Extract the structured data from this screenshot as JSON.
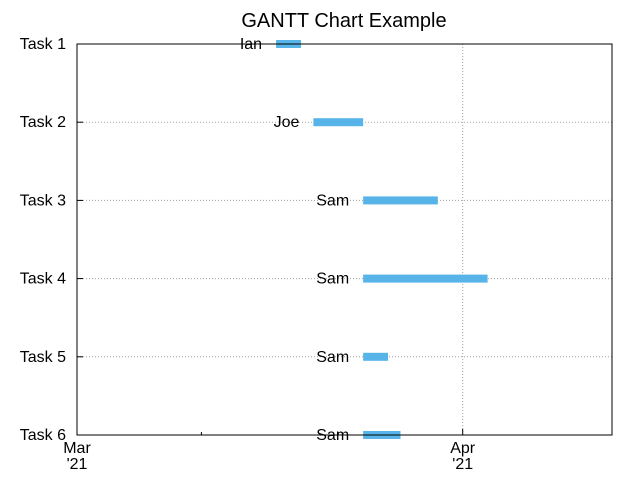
{
  "chart_data": {
    "type": "gantt",
    "title": "GANTT Chart Example",
    "xlabel": "",
    "ylabel": "",
    "x_axis": {
      "type": "date",
      "range": [
        "2021-03-01",
        "2021-04-13"
      ],
      "major_ticks": [
        {
          "date": "2021-03-01",
          "label_line1": "Mar",
          "label_line2": "'21"
        },
        {
          "date": "2021-04-01",
          "label_line1": "Apr",
          "label_line2": "'21"
        }
      ],
      "minor_ticks": [
        "2021-03-11",
        "2021-03-22"
      ]
    },
    "grid": true,
    "tasks": [
      {
        "name": "Task 1",
        "assignee": "Ian",
        "start": "2021-03-17",
        "end": "2021-03-19"
      },
      {
        "name": "Task 2",
        "assignee": "Joe",
        "start": "2021-03-20",
        "end": "2021-03-24"
      },
      {
        "name": "Task 3",
        "assignee": "Sam",
        "start": "2021-03-24",
        "end": "2021-03-30"
      },
      {
        "name": "Task 4",
        "assignee": "Sam",
        "start": "2021-03-24",
        "end": "2021-04-03"
      },
      {
        "name": "Task 5",
        "assignee": "Sam",
        "start": "2021-03-24",
        "end": "2021-03-26"
      },
      {
        "name": "Task 6",
        "assignee": "Sam",
        "start": "2021-03-24",
        "end": "2021-03-27"
      }
    ],
    "bar_color": "#56b4e9"
  }
}
